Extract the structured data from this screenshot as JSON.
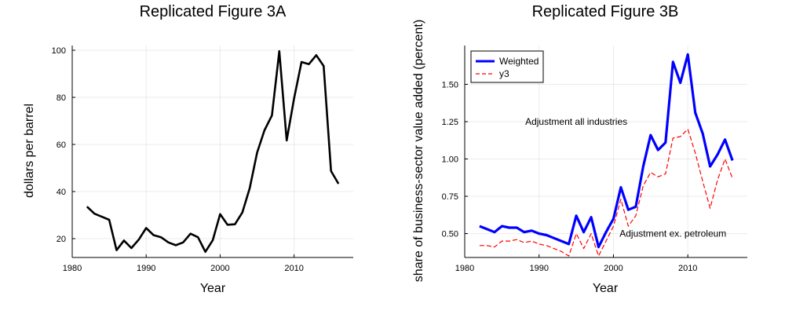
{
  "chart_data": [
    {
      "type": "line",
      "title": "Replicated Figure 3A",
      "xlabel": "Year",
      "ylabel": "dollars per barrel",
      "xlim": [
        1980,
        2018
      ],
      "ylim": [
        12,
        102
      ],
      "xticks": [
        1980,
        1990,
        2000,
        2010
      ],
      "xtick_labels": [
        "1980",
        "1990",
        "2000",
        "2010"
      ],
      "yticks": [
        20,
        40,
        60,
        80,
        100
      ],
      "ytick_labels": [
        "20",
        "40",
        "60",
        "80",
        "100"
      ],
      "grid": true,
      "x": [
        1982,
        1983,
        1984,
        1985,
        1986,
        1987,
        1988,
        1989,
        1990,
        1991,
        1992,
        1993,
        1994,
        1995,
        1996,
        1997,
        1998,
        1999,
        2000,
        2001,
        2002,
        2003,
        2004,
        2005,
        2006,
        2007,
        2008,
        2009,
        2010,
        2011,
        2012,
        2013,
        2014,
        2015,
        2016
      ],
      "series": [
        {
          "color": "#000000",
          "style": "solid",
          "values": [
            33.6,
            30.6,
            29.3,
            28.0,
            15.1,
            19.2,
            16.0,
            19.6,
            24.5,
            21.5,
            20.6,
            18.4,
            17.2,
            18.4,
            22.1,
            20.6,
            14.4,
            19.3,
            30.4,
            25.9,
            26.1,
            31.1,
            41.4,
            56.5,
            66.0,
            72.3,
            99.6,
            61.7,
            79.5,
            95.0,
            94.1,
            97.9,
            93.3,
            48.7,
            43.3
          ]
        }
      ]
    },
    {
      "type": "line",
      "title": "Replicated Figure 3B",
      "xlabel": "Year",
      "ylabel": "share of business-sector value added (percent)",
      "xlim": [
        1980,
        2018
      ],
      "ylim": [
        0.34,
        1.76
      ],
      "xticks": [
        1980,
        1990,
        2000,
        2010
      ],
      "xtick_labels": [
        "1980",
        "1990",
        "2000",
        "2010"
      ],
      "yticks": [
        0.5,
        0.75,
        1.0,
        1.25,
        1.5
      ],
      "ytick_labels": [
        "0.50",
        "0.75",
        "1.00",
        "1.25",
        "1.50"
      ],
      "grid": true,
      "legend_position": "top-left",
      "annotations": [
        {
          "text": "Adjustment all industries",
          "x": 1995,
          "y": 1.25
        },
        {
          "text": "Adjustment ex. petroleum",
          "x": 2008,
          "y": 0.5
        }
      ],
      "x": [
        1982,
        1983,
        1984,
        1985,
        1986,
        1987,
        1988,
        1989,
        1990,
        1991,
        1992,
        1993,
        1994,
        1995,
        1996,
        1997,
        1998,
        1999,
        2000,
        2001,
        2002,
        2003,
        2004,
        2005,
        2006,
        2007,
        2008,
        2009,
        2010,
        2011,
        2012,
        2013,
        2014,
        2015,
        2016
      ],
      "series": [
        {
          "name": "Weighted",
          "color": "#0000ff",
          "style": "solid",
          "values": [
            0.55,
            0.53,
            0.51,
            0.55,
            0.54,
            0.54,
            0.51,
            0.52,
            0.5,
            0.49,
            0.47,
            0.45,
            0.43,
            0.62,
            0.51,
            0.61,
            0.41,
            0.51,
            0.6,
            0.81,
            0.66,
            0.68,
            0.95,
            1.16,
            1.06,
            1.11,
            1.65,
            1.51,
            1.7,
            1.31,
            1.17,
            0.95,
            1.03,
            1.13,
            0.99
          ]
        },
        {
          "name": "y3",
          "color": "#ff0000",
          "style": "dashed",
          "values": [
            0.42,
            0.42,
            0.41,
            0.45,
            0.45,
            0.46,
            0.44,
            0.45,
            0.43,
            0.42,
            0.4,
            0.38,
            0.35,
            0.5,
            0.4,
            0.5,
            0.35,
            0.45,
            0.55,
            0.73,
            0.55,
            0.62,
            0.82,
            0.91,
            0.88,
            0.9,
            1.14,
            1.15,
            1.2,
            1.04,
            0.85,
            0.67,
            0.86,
            1.0,
            0.87
          ]
        }
      ]
    }
  ]
}
